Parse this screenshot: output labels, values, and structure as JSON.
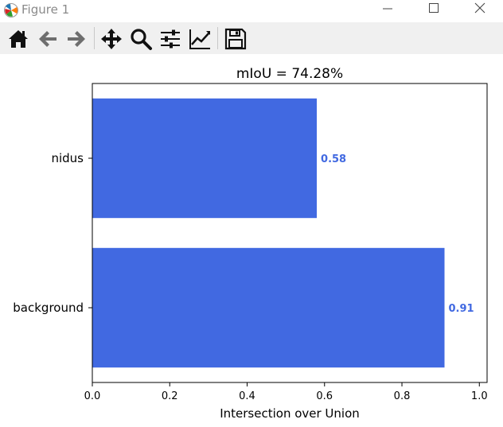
{
  "window": {
    "title": "Figure 1"
  },
  "toolbar": {
    "tools": [
      "home-icon",
      "back-arrow-icon",
      "forward-arrow-icon",
      "pan-icon",
      "zoom-icon",
      "configure-subplots-icon",
      "edit-axes-icon",
      "save-icon"
    ]
  },
  "colors": {
    "bar": "#4169e1",
    "label": "#4169e1"
  },
  "chart_data": {
    "type": "bar",
    "orientation": "horizontal",
    "title": "mIoU = 74.28%",
    "xlabel": "Intersection over Union",
    "ylabel": "",
    "categories": [
      "background",
      "nidus"
    ],
    "values": [
      0.91,
      0.58
    ],
    "value_labels": [
      "0.91",
      "0.58"
    ],
    "xlim": [
      0,
      1.02
    ],
    "xticks": [
      0.0,
      0.2,
      0.4,
      0.6,
      0.8,
      1.0
    ],
    "xtick_labels": [
      "0.0",
      "0.2",
      "0.4",
      "0.6",
      "0.8",
      "1.0"
    ],
    "grid": false
  }
}
